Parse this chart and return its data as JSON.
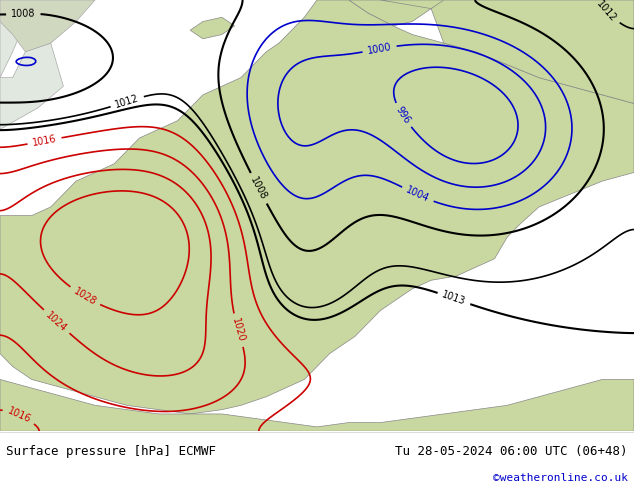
{
  "title_left": "Surface pressure [hPa] ECMWF",
  "title_right": "Tu 28-05-2024 06:00 UTC (06+48)",
  "credit": "©weatheronline.co.uk",
  "bg_color": "#d0d8e8",
  "land_color": "#c8d8a0",
  "map_border_color": "#888888",
  "black_isobar_color": "#000000",
  "red_isobar_color": "#cc0000",
  "blue_isobar_color": "#0000cc",
  "footer_bg": "#ffffff",
  "footer_text_color": "#000000",
  "credit_color": "#0000cc",
  "figsize": [
    6.34,
    4.9
  ],
  "dpi": 100
}
